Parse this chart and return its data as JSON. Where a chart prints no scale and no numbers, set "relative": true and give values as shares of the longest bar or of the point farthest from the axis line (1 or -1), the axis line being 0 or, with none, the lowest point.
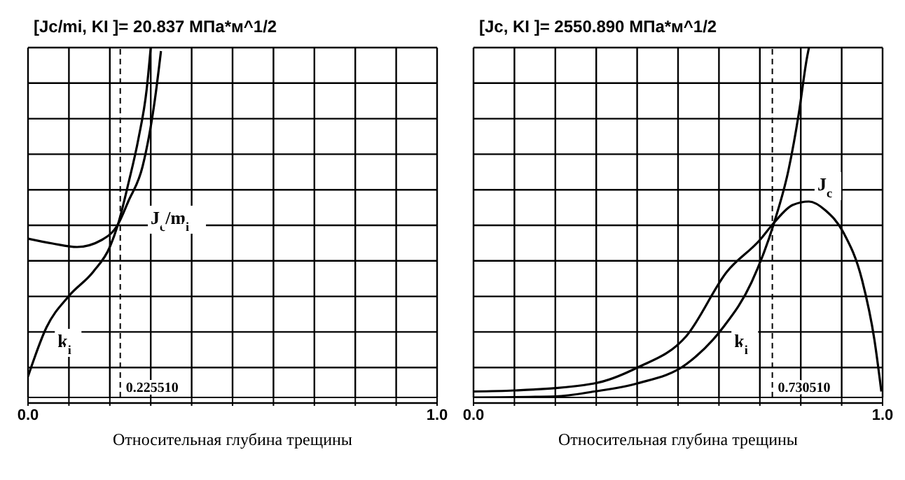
{
  "chart_data": [
    {
      "type": "line",
      "title": "[Jc/mi, KI ]= 20.837 МПа*м^1/2",
      "xlabel": "Относительная глубина трещины",
      "relative": true,
      "xlim": [
        0,
        1
      ],
      "xticks": [
        {
          "value": 0,
          "label": "0.0"
        },
        {
          "value": 0.1,
          "label": null
        },
        {
          "value": 0.2,
          "label": null
        },
        {
          "value": 0.3,
          "label": null
        },
        {
          "value": 0.4,
          "label": null
        },
        {
          "value": 0.5,
          "label": null
        },
        {
          "value": 0.6,
          "label": null
        },
        {
          "value": 0.7,
          "label": null
        },
        {
          "value": 0.8,
          "label": null
        },
        {
          "value": 0.9,
          "label": null
        },
        {
          "value": 1,
          "label": "1.0"
        }
      ],
      "grid": true,
      "legend": false,
      "marker": "none",
      "line_style": "solid",
      "ref_lines": [
        {
          "axis": "x",
          "value": 0.22551,
          "label": "0.225510",
          "line_style": "dashed"
        }
      ],
      "series": [
        {
          "name": "k$_{i}$",
          "color": "#000000",
          "x": [
            0,
            0.045,
            0.1,
            0.16,
            0.2,
            0.22,
            0.245,
            0.27,
            0.29,
            0.3
          ],
          "values": [
            0.06,
            0.2,
            0.29,
            0.36,
            0.43,
            0.495,
            0.61,
            0.74,
            0.88,
            1
          ]
        },
        {
          "name": "J$_{c}$/m$_{i}$",
          "color": "#000000",
          "x": [
            0,
            0.06,
            0.12,
            0.18,
            0.22,
            0.245,
            0.28,
            0.31,
            0.325
          ],
          "values": [
            0.454,
            0.44,
            0.43,
            0.45,
            0.495,
            0.56,
            0.66,
            0.85,
            0.99
          ]
        }
      ]
    },
    {
      "type": "line",
      "title": "[Jc, KI ]= 2550.890 МПа*м^1/2",
      "xlabel": "Относительная глубина трещины",
      "relative": true,
      "xlim": [
        0,
        1
      ],
      "xticks": [
        {
          "value": 0,
          "label": "0.0"
        },
        {
          "value": 0.1,
          "label": null
        },
        {
          "value": 0.2,
          "label": null
        },
        {
          "value": 0.3,
          "label": null
        },
        {
          "value": 0.4,
          "label": null
        },
        {
          "value": 0.5,
          "label": null
        },
        {
          "value": 0.6,
          "label": null
        },
        {
          "value": 0.7,
          "label": null
        },
        {
          "value": 0.8,
          "label": null
        },
        {
          "value": 0.9,
          "label": null
        },
        {
          "value": 1,
          "label": "1.0"
        }
      ],
      "grid": true,
      "legend": false,
      "marker": "none",
      "line_style": "solid",
      "ref_lines": [
        {
          "axis": "x",
          "value": 0.73051,
          "label": "0.730510",
          "line_style": "dashed"
        }
      ],
      "series": [
        {
          "name": "k$_{i}$",
          "color": "#000000",
          "x": [
            0,
            0.2,
            0.295,
            0.4,
            0.52,
            0.61,
            0.68,
            0.735,
            0.77,
            0.795,
            0.815,
            0.82
          ],
          "values": [
            0,
            0.003,
            0.017,
            0.04,
            0.095,
            0.2,
            0.33,
            0.5,
            0.65,
            0.81,
            0.97,
            1
          ]
        },
        {
          "name": "J$_{c}$",
          "color": "#000000",
          "x": [
            0,
            0.1,
            0.295,
            0.4,
            0.52,
            0.62,
            0.7,
            0.735,
            0.78,
            0.82,
            0.86,
            0.905,
            0.95,
            0.98,
            0.997
          ],
          "values": [
            0.017,
            0.02,
            0.04,
            0.085,
            0.175,
            0.36,
            0.45,
            0.5,
            0.55,
            0.56,
            0.535,
            0.47,
            0.335,
            0.165,
            0.017
          ]
        }
      ]
    }
  ]
}
